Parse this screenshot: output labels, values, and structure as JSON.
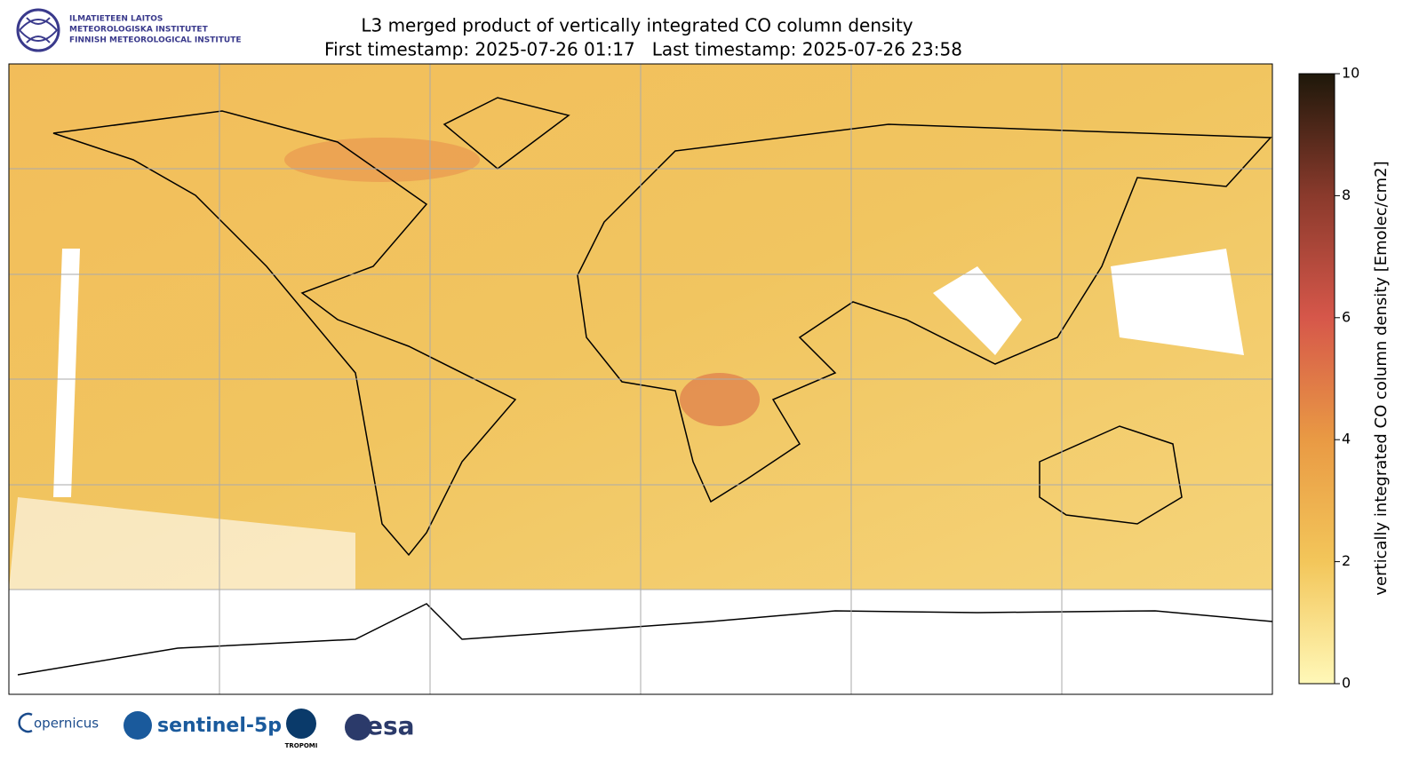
{
  "header": {
    "institute_lines": [
      "ILMATIETEEN LAITOS",
      "METEOROLOGISKA INSTITUTET",
      "FINNISH METEOROLOGICAL INSTITUTE"
    ],
    "title": "L3 merged product of vertically integrated CO column density",
    "subtitle": "First timestamp: 2025-07-26 01:17   Last timestamp: 2025-07-26 23:58"
  },
  "colorbar": {
    "label": "vertically integrated CO column density [Emolec/cm2]",
    "lim": [
      0,
      10
    ],
    "ticks": [
      0,
      2,
      4,
      6,
      8,
      10
    ],
    "colors": [
      "#fff8b8",
      "#f3c65a",
      "#e99a44",
      "#d6574a",
      "#8a3a2c",
      "#1e180a"
    ]
  },
  "footer": {
    "copernicus": "opernicus",
    "sentinel": "sentinel-5p",
    "tropomi": "TROPOMI",
    "esa": "esa"
  }
}
